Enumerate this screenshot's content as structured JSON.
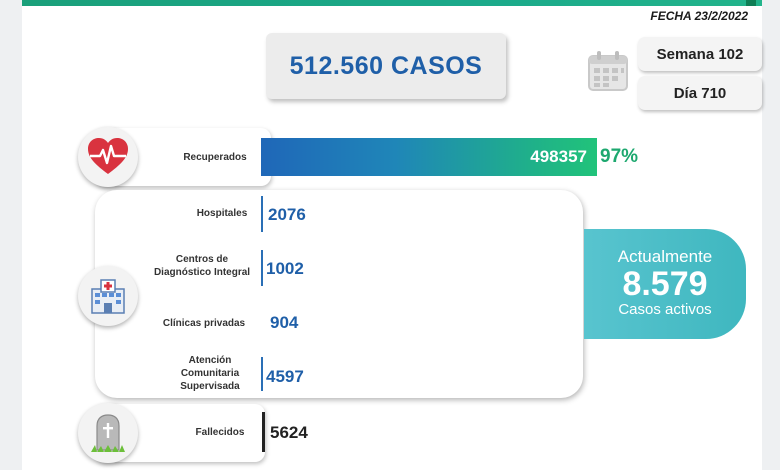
{
  "header": {
    "fecha": "FECHA 23/2/2022"
  },
  "total": {
    "label": "512.560 CASOS"
  },
  "calendar": {
    "icon": "calendar-icon",
    "semana": "Semana 102",
    "dia": "Día 710"
  },
  "recuperados": {
    "label": "Recuperados",
    "value": "498357",
    "percent": "97%",
    "icon": "heart-pulse-icon",
    "colors": {
      "start": "#1f67b8",
      "end": "#21c37a"
    }
  },
  "atencion": {
    "icon": "hospital-icon",
    "items": [
      {
        "label": "Hospitales",
        "value": "2076"
      },
      {
        "label": "Centros de Diagnóstico Integral",
        "value": "1002"
      },
      {
        "label": "Clínicas privadas",
        "value": "904"
      },
      {
        "label": "Atención Comunitaria Supervisada",
        "value": "4597"
      }
    ]
  },
  "activos": {
    "line1": "Actualmente",
    "value": "8.579",
    "line2": "Casos activos",
    "color": "#3fb7bf"
  },
  "fallecidos": {
    "label": "Fallecidos",
    "value": "5624",
    "icon": "tombstone-icon"
  }
}
